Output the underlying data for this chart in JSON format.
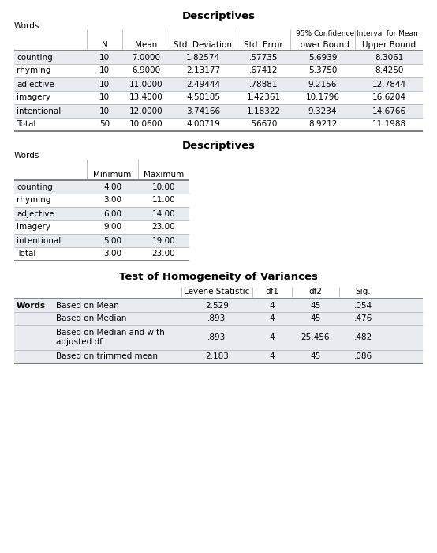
{
  "bg_color": "#ffffff",
  "table1": {
    "title": "Descriptives",
    "subtitle": "Words",
    "ci_header": "95% Confidence Interval for Mean",
    "col_headers": [
      "",
      "N",
      "Mean",
      "Std. Deviation",
      "Std. Error",
      "Lower Bound",
      "Upper Bound"
    ],
    "rows": [
      [
        "counting",
        "10",
        "7.0000",
        "1.82574",
        ".57735",
        "5.6939",
        "8.3061"
      ],
      [
        "rhyming",
        "10",
        "6.9000",
        "2.13177",
        ".67412",
        "5.3750",
        "8.4250"
      ],
      [
        "adjective",
        "10",
        "11.0000",
        "2.49444",
        ".78881",
        "9.2156",
        "12.7844"
      ],
      [
        "imagery",
        "10",
        "13.4000",
        "4.50185",
        "1.42361",
        "10.1796",
        "16.6204"
      ],
      [
        "intentional",
        "10",
        "12.0000",
        "3.74166",
        "1.18322",
        "9.3234",
        "14.6766"
      ],
      [
        "Total",
        "50",
        "10.0600",
        "4.00719",
        ".56670",
        "8.9212",
        "11.1988"
      ]
    ]
  },
  "table2": {
    "title": "Descriptives",
    "subtitle": "Words",
    "col_headers": [
      "",
      "Minimum",
      "Maximum"
    ],
    "rows": [
      [
        "counting",
        "4.00",
        "10.00"
      ],
      [
        "rhyming",
        "3.00",
        "11.00"
      ],
      [
        "adjective",
        "6.00",
        "14.00"
      ],
      [
        "imagery",
        "9.00",
        "23.00"
      ],
      [
        "intentional",
        "5.00",
        "19.00"
      ],
      [
        "Total",
        "3.00",
        "23.00"
      ]
    ]
  },
  "table3": {
    "title": "Test of Homogeneity of Variances",
    "col_headers": [
      "",
      "",
      "Levene Statistic",
      "df1",
      "df2",
      "Sig."
    ],
    "rows": [
      [
        "Words",
        "Based on Mean",
        "2.529",
        "4",
        "45",
        ".054"
      ],
      [
        "",
        "Based on Median",
        ".893",
        "4",
        "45",
        ".476"
      ],
      [
        "",
        "Based on Median and with\nadjusted df",
        ".893",
        "4",
        "25.456",
        ".482"
      ],
      [
        "",
        "Based on trimmed mean",
        "2.183",
        "4",
        "45",
        ".086"
      ]
    ]
  },
  "row_alt_color": "#e8ecf0",
  "row_white": "#ffffff",
  "line_color_thick": "#777777",
  "line_color_thin": "#aaaaaa",
  "text_color": "#000000",
  "font_size": 7.5,
  "title_font_size": 9.5
}
